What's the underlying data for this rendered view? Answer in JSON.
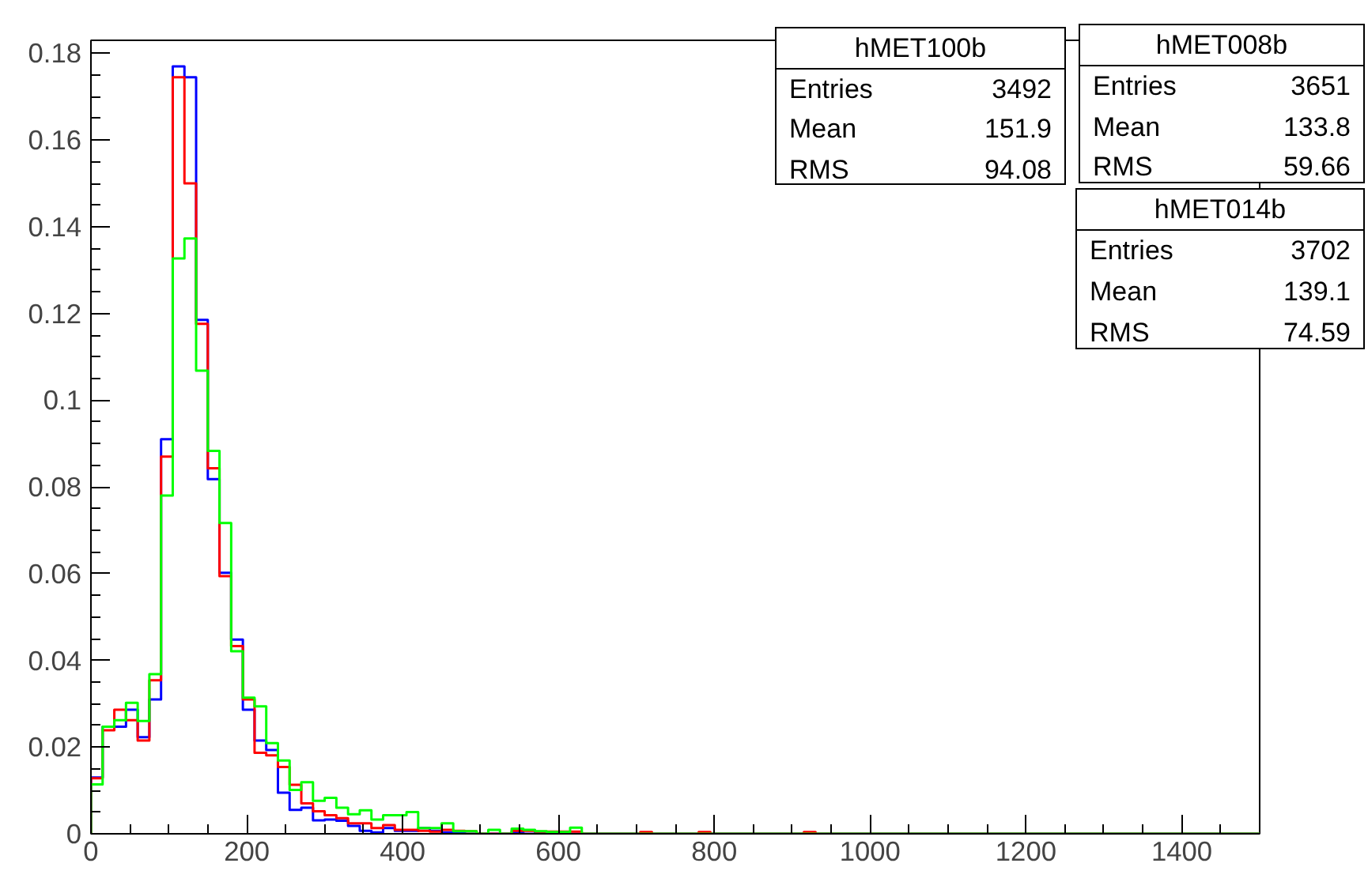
{
  "chart_data": {
    "type": "histogram",
    "bins": [
      0,
      15,
      30,
      45,
      60,
      75,
      90,
      105,
      120,
      135,
      150,
      165,
      180,
      195,
      210,
      225,
      240,
      255,
      270,
      285,
      300,
      315,
      330,
      345,
      360,
      375,
      390,
      405,
      420,
      435,
      450,
      465,
      480,
      495,
      510,
      525,
      540,
      555,
      570,
      585,
      600,
      615,
      630,
      645,
      660,
      675,
      690,
      705,
      720,
      735,
      750,
      765,
      780,
      795,
      810,
      825,
      840,
      855,
      870,
      885,
      900,
      915,
      930,
      945,
      960,
      975,
      990,
      1005,
      1020,
      1035,
      1050,
      1065,
      1080,
      1095,
      1110,
      1125,
      1140,
      1155,
      1170,
      1185,
      1200,
      1215,
      1230,
      1245,
      1260,
      1275,
      1290,
      1305,
      1320,
      1335,
      1350,
      1365,
      1380,
      1395,
      1410,
      1425,
      1440,
      1455,
      1470,
      1485,
      1500
    ],
    "series": [
      {
        "color": "#0000ff",
        "values": [
          0.013,
          0.0247,
          0.0247,
          0.0286,
          0.0223,
          0.031,
          0.091,
          0.177,
          0.1745,
          0.1185,
          0.0818,
          0.0602,
          0.0448,
          0.0286,
          0.0215,
          0.0193,
          0.0095,
          0.0055,
          0.006,
          0.0031,
          0.0033,
          0.003,
          0.0018,
          0.0007,
          0.0003,
          0.0013,
          0.0007,
          0.0007,
          0.0013,
          0.0007,
          0.0003,
          0.0003,
          0,
          0,
          0,
          0,
          0.0003,
          0,
          0.0003,
          0,
          0,
          0,
          0,
          0,
          0,
          0,
          0,
          0,
          0,
          0,
          0,
          0,
          0,
          0,
          0,
          0,
          0,
          0,
          0,
          0,
          0,
          0,
          0,
          0,
          0,
          0,
          0,
          0,
          0,
          0,
          0,
          0,
          0,
          0,
          0,
          0,
          0,
          0,
          0,
          0,
          0,
          0,
          0,
          0,
          0,
          0,
          0,
          0,
          0,
          0,
          0,
          0,
          0,
          0,
          0,
          0,
          0,
          0,
          0,
          0
        ]
      },
      {
        "color": "#ff0000",
        "values": [
          0.0128,
          0.0239,
          0.0286,
          0.0262,
          0.0215,
          0.0354,
          0.087,
          0.1745,
          0.15,
          0.1176,
          0.0843,
          0.0594,
          0.0433,
          0.031,
          0.0187,
          0.0181,
          0.0154,
          0.0113,
          0.007,
          0.0052,
          0.0043,
          0.0036,
          0.0024,
          0.0024,
          0.0013,
          0.002,
          0.0009,
          0.0009,
          0.0007,
          0.0005,
          0.0009,
          0.0007,
          0.0006,
          0,
          0,
          0,
          0.0007,
          0.0007,
          0.0005,
          0.0005,
          0.0005,
          0.0005,
          0,
          0,
          0,
          0,
          0,
          0.0004,
          0,
          0,
          0,
          0,
          0.0004,
          0,
          0,
          0,
          0,
          0,
          0,
          0,
          0,
          0.0004,
          0,
          0,
          0,
          0,
          0,
          0,
          0,
          0,
          0,
          0,
          0,
          0,
          0,
          0,
          0,
          0,
          0,
          0,
          0,
          0,
          0,
          0,
          0,
          0,
          0,
          0,
          0,
          0,
          0,
          0,
          0,
          0,
          0,
          0,
          0,
          0,
          0,
          0
        ]
      },
      {
        "color": "#00ff00",
        "values": [
          0.0114,
          0.0247,
          0.0262,
          0.0302,
          0.026,
          0.0368,
          0.078,
          0.1327,
          0.1373,
          0.1068,
          0.0883,
          0.0717,
          0.0421,
          0.0314,
          0.0294,
          0.0209,
          0.0169,
          0.0101,
          0.0119,
          0.0076,
          0.0083,
          0.006,
          0.0045,
          0.0054,
          0.0033,
          0.0043,
          0.0043,
          0.005,
          0.0013,
          0.0013,
          0.0024,
          0.0006,
          0.0006,
          0,
          0.0009,
          0,
          0.0012,
          0.0009,
          0.0006,
          0.0004,
          0.0004,
          0.0014,
          0,
          0,
          0,
          0,
          0,
          0,
          0,
          0,
          0,
          0,
          0,
          0,
          0,
          0,
          0,
          0,
          0,
          0,
          0,
          0,
          0,
          0,
          0,
          0,
          0,
          0,
          0,
          0,
          0,
          0,
          0,
          0,
          0,
          0,
          0,
          0,
          0,
          0,
          0,
          0,
          0,
          0,
          0,
          0,
          0,
          0,
          0,
          0,
          0,
          0,
          0,
          0,
          0,
          0,
          0,
          0,
          0,
          0
        ]
      }
    ],
    "xlim": [
      0,
      1500
    ],
    "xticks": [
      0,
      200,
      400,
      600,
      800,
      1000,
      1200,
      1400
    ],
    "ylim": [
      0,
      0.183
    ],
    "yticks": [
      0,
      0.02,
      0.04,
      0.06,
      0.08,
      0.1,
      0.12,
      0.14,
      0.16,
      0.18
    ],
    "grid": false,
    "annotations": [
      "hMET100b\nEntries\t3492\nMean\t151.9\nRMS\t94.08",
      "hMET008b\nEntries\t3651\nMean\t133.8\nRMS\t59.66",
      "hMET014b\nEntries\t3702\nMean\t139.1\nRMS\t74.59"
    ]
  }
}
